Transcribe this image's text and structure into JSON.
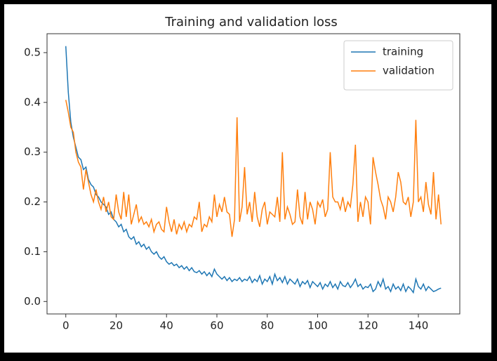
{
  "chart_data": {
    "type": "line",
    "title": "Training and validation loss",
    "x": [
      0,
      1,
      2,
      3,
      4,
      5,
      6,
      7,
      8,
      9,
      10,
      11,
      12,
      13,
      14,
      15,
      16,
      17,
      18,
      19,
      20,
      21,
      22,
      23,
      24,
      25,
      26,
      27,
      28,
      29,
      30,
      31,
      32,
      33,
      34,
      35,
      36,
      37,
      38,
      39,
      40,
      41,
      42,
      43,
      44,
      45,
      46,
      47,
      48,
      49,
      50,
      51,
      52,
      53,
      54,
      55,
      56,
      57,
      58,
      59,
      60,
      61,
      62,
      63,
      64,
      65,
      66,
      67,
      68,
      69,
      70,
      71,
      72,
      73,
      74,
      75,
      76,
      77,
      78,
      79,
      80,
      81,
      82,
      83,
      84,
      85,
      86,
      87,
      88,
      89,
      90,
      91,
      92,
      93,
      94,
      95,
      96,
      97,
      98,
      99,
      100,
      101,
      102,
      103,
      104,
      105,
      106,
      107,
      108,
      109,
      110,
      111,
      112,
      113,
      114,
      115,
      116,
      117,
      118,
      119,
      120,
      121,
      122,
      123,
      124,
      125,
      126,
      127,
      128,
      129,
      130,
      131,
      132,
      133,
      134,
      135,
      136,
      137,
      138,
      139,
      140,
      141,
      142,
      143,
      144,
      145,
      146,
      147,
      148,
      149
    ],
    "series": [
      {
        "name": "training",
        "color": "#1f77b4",
        "values": [
          0.513,
          0.42,
          0.36,
          0.33,
          0.31,
          0.29,
          0.285,
          0.265,
          0.27,
          0.245,
          0.235,
          0.23,
          0.215,
          0.21,
          0.2,
          0.195,
          0.19,
          0.175,
          0.18,
          0.165,
          0.16,
          0.15,
          0.155,
          0.14,
          0.145,
          0.13,
          0.125,
          0.13,
          0.115,
          0.12,
          0.11,
          0.115,
          0.105,
          0.11,
          0.1,
          0.095,
          0.1,
          0.09,
          0.085,
          0.09,
          0.08,
          0.075,
          0.078,
          0.072,
          0.075,
          0.068,
          0.072,
          0.065,
          0.07,
          0.062,
          0.068,
          0.06,
          0.058,
          0.062,
          0.055,
          0.06,
          0.052,
          0.058,
          0.05,
          0.065,
          0.055,
          0.05,
          0.045,
          0.05,
          0.042,
          0.048,
          0.04,
          0.045,
          0.042,
          0.048,
          0.04,
          0.045,
          0.042,
          0.05,
          0.038,
          0.045,
          0.04,
          0.052,
          0.035,
          0.045,
          0.04,
          0.05,
          0.035,
          0.055,
          0.042,
          0.048,
          0.038,
          0.05,
          0.035,
          0.045,
          0.04,
          0.035,
          0.045,
          0.03,
          0.04,
          0.035,
          0.042,
          0.028,
          0.04,
          0.035,
          0.03,
          0.038,
          0.025,
          0.035,
          0.03,
          0.04,
          0.028,
          0.035,
          0.025,
          0.04,
          0.032,
          0.03,
          0.038,
          0.028,
          0.035,
          0.045,
          0.03,
          0.035,
          0.025,
          0.03,
          0.028,
          0.035,
          0.02,
          0.025,
          0.04,
          0.03,
          0.045,
          0.025,
          0.03,
          0.02,
          0.035,
          0.025,
          0.03,
          0.022,
          0.035,
          0.02,
          0.03,
          0.025,
          0.018,
          0.045,
          0.03,
          0.025,
          0.035,
          0.022,
          0.03,
          0.025,
          0.02,
          0.022,
          0.025,
          0.027
        ]
      },
      {
        "name": "validation",
        "color": "#ff7f0e",
        "values": [
          0.405,
          0.38,
          0.35,
          0.34,
          0.3,
          0.28,
          0.27,
          0.225,
          0.265,
          0.24,
          0.215,
          0.2,
          0.225,
          0.2,
          0.185,
          0.21,
          0.18,
          0.2,
          0.17,
          0.165,
          0.215,
          0.18,
          0.165,
          0.22,
          0.17,
          0.215,
          0.155,
          0.175,
          0.195,
          0.16,
          0.17,
          0.155,
          0.16,
          0.15,
          0.165,
          0.14,
          0.155,
          0.16,
          0.145,
          0.14,
          0.19,
          0.16,
          0.14,
          0.165,
          0.135,
          0.155,
          0.145,
          0.16,
          0.14,
          0.155,
          0.15,
          0.17,
          0.165,
          0.2,
          0.14,
          0.155,
          0.15,
          0.17,
          0.16,
          0.215,
          0.17,
          0.195,
          0.18,
          0.21,
          0.18,
          0.175,
          0.13,
          0.165,
          0.37,
          0.16,
          0.19,
          0.27,
          0.175,
          0.2,
          0.16,
          0.22,
          0.17,
          0.15,
          0.185,
          0.2,
          0.155,
          0.18,
          0.175,
          0.17,
          0.21,
          0.16,
          0.3,
          0.165,
          0.19,
          0.175,
          0.155,
          0.16,
          0.225,
          0.17,
          0.155,
          0.22,
          0.165,
          0.2,
          0.185,
          0.155,
          0.2,
          0.19,
          0.205,
          0.17,
          0.185,
          0.3,
          0.21,
          0.2,
          0.2,
          0.185,
          0.21,
          0.18,
          0.2,
          0.19,
          0.235,
          0.315,
          0.16,
          0.2,
          0.17,
          0.21,
          0.2,
          0.155,
          0.29,
          0.26,
          0.235,
          0.205,
          0.19,
          0.165,
          0.21,
          0.2,
          0.18,
          0.21,
          0.26,
          0.24,
          0.2,
          0.195,
          0.21,
          0.17,
          0.2,
          0.365,
          0.2,
          0.21,
          0.18,
          0.24,
          0.195,
          0.175,
          0.26,
          0.165,
          0.215,
          0.155
        ]
      }
    ],
    "xlim": [
      -7.45,
      156.45
    ],
    "xticks": [
      0,
      20,
      40,
      60,
      80,
      100,
      120,
      140
    ],
    "ylim": [
      -0.025,
      0.538
    ],
    "yticks": [
      {
        "value": 0,
        "label": "0.0"
      },
      0.1,
      0.2,
      0.3,
      0.4,
      0.5
    ],
    "legend": "upper right"
  }
}
